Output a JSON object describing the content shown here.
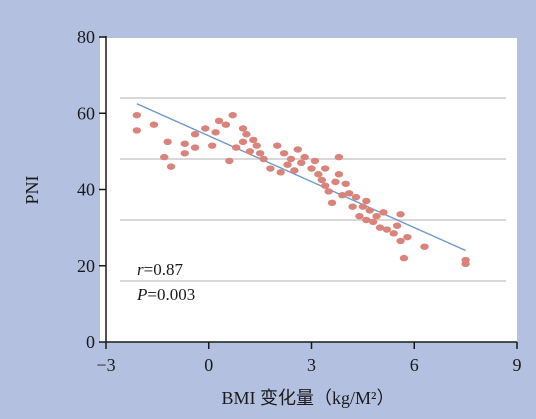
{
  "chart_data": {
    "type": "scatter",
    "title": "",
    "xlabel": "BMI 变化量（kg/M²）",
    "ylabel": "PNI",
    "xlim": [
      -3,
      9
    ],
    "ylim": [
      0,
      80
    ],
    "xticks": [
      -3,
      0,
      3,
      6,
      9
    ],
    "yticks": [
      0,
      20,
      40,
      60,
      80
    ],
    "x_tick_labels": [
      "−3",
      "0",
      "3",
      "6",
      "9"
    ],
    "y_tick_labels": [
      "0",
      "20",
      "40",
      "60",
      "80"
    ],
    "grid": "horizontal",
    "colors": {
      "background": "#b3c0e0",
      "plot_area": "#ffffff",
      "points": "#d9837b",
      "trend_line": "#6d98c9",
      "grid": "#d8d8d8",
      "axis": "#1a1a1a"
    },
    "annotations": [
      {
        "var": "r",
        "text": "=0.87"
      },
      {
        "var": "P",
        "text": "=0.003"
      }
    ],
    "trend_line": {
      "x": [
        -2.1,
        7.5
      ],
      "y": [
        62.5,
        24.0
      ]
    },
    "points": [
      {
        "x": -2.1,
        "y": 59.5
      },
      {
        "x": -2.1,
        "y": 55.5
      },
      {
        "x": -1.6,
        "y": 57.0
      },
      {
        "x": -1.3,
        "y": 48.5
      },
      {
        "x": -1.2,
        "y": 52.5
      },
      {
        "x": -1.1,
        "y": 46.0
      },
      {
        "x": -0.7,
        "y": 49.5
      },
      {
        "x": -0.7,
        "y": 52.0
      },
      {
        "x": -0.4,
        "y": 51.0
      },
      {
        "x": -0.4,
        "y": 54.5
      },
      {
        "x": -0.1,
        "y": 56.0
      },
      {
        "x": 0.1,
        "y": 51.5
      },
      {
        "x": 0.2,
        "y": 55.0
      },
      {
        "x": 0.3,
        "y": 58.0
      },
      {
        "x": 0.5,
        "y": 57.0
      },
      {
        "x": 0.6,
        "y": 47.5
      },
      {
        "x": 0.7,
        "y": 59.5
      },
      {
        "x": 0.8,
        "y": 51.0
      },
      {
        "x": 1.0,
        "y": 56.0
      },
      {
        "x": 1.0,
        "y": 52.5
      },
      {
        "x": 1.1,
        "y": 54.5
      },
      {
        "x": 1.2,
        "y": 50.0
      },
      {
        "x": 1.3,
        "y": 53.0
      },
      {
        "x": 1.4,
        "y": 51.5
      },
      {
        "x": 1.5,
        "y": 49.5
      },
      {
        "x": 1.6,
        "y": 48.0
      },
      {
        "x": 1.8,
        "y": 45.5
      },
      {
        "x": 2.0,
        "y": 51.5
      },
      {
        "x": 2.1,
        "y": 44.5
      },
      {
        "x": 2.2,
        "y": 49.5
      },
      {
        "x": 2.3,
        "y": 46.5
      },
      {
        "x": 2.4,
        "y": 48.0
      },
      {
        "x": 2.5,
        "y": 45.0
      },
      {
        "x": 2.6,
        "y": 50.5
      },
      {
        "x": 2.7,
        "y": 47.0
      },
      {
        "x": 2.8,
        "y": 48.5
      },
      {
        "x": 3.0,
        "y": 45.5
      },
      {
        "x": 3.1,
        "y": 47.5
      },
      {
        "x": 3.2,
        "y": 44.0
      },
      {
        "x": 3.3,
        "y": 42.5
      },
      {
        "x": 3.4,
        "y": 41.0
      },
      {
        "x": 3.4,
        "y": 45.5
      },
      {
        "x": 3.5,
        "y": 39.5
      },
      {
        "x": 3.6,
        "y": 36.5
      },
      {
        "x": 3.7,
        "y": 42.0
      },
      {
        "x": 3.8,
        "y": 44.0
      },
      {
        "x": 3.8,
        "y": 48.5
      },
      {
        "x": 3.9,
        "y": 38.5
      },
      {
        "x": 4.0,
        "y": 41.5
      },
      {
        "x": 4.1,
        "y": 39.0
      },
      {
        "x": 4.2,
        "y": 35.5
      },
      {
        "x": 4.3,
        "y": 38.0
      },
      {
        "x": 4.4,
        "y": 33.0
      },
      {
        "x": 4.5,
        "y": 35.5
      },
      {
        "x": 4.6,
        "y": 32.0
      },
      {
        "x": 4.6,
        "y": 37.0
      },
      {
        "x": 4.7,
        "y": 34.5
      },
      {
        "x": 4.8,
        "y": 31.5
      },
      {
        "x": 4.9,
        "y": 33.0
      },
      {
        "x": 5.0,
        "y": 30.0
      },
      {
        "x": 5.1,
        "y": 34.0
      },
      {
        "x": 5.2,
        "y": 29.5
      },
      {
        "x": 5.4,
        "y": 28.5
      },
      {
        "x": 5.5,
        "y": 30.5
      },
      {
        "x": 5.6,
        "y": 26.5
      },
      {
        "x": 5.6,
        "y": 33.5
      },
      {
        "x": 5.7,
        "y": 22.0
      },
      {
        "x": 5.8,
        "y": 27.5
      },
      {
        "x": 6.3,
        "y": 25.0
      },
      {
        "x": 7.5,
        "y": 21.5
      },
      {
        "x": 7.5,
        "y": 20.5
      }
    ]
  }
}
